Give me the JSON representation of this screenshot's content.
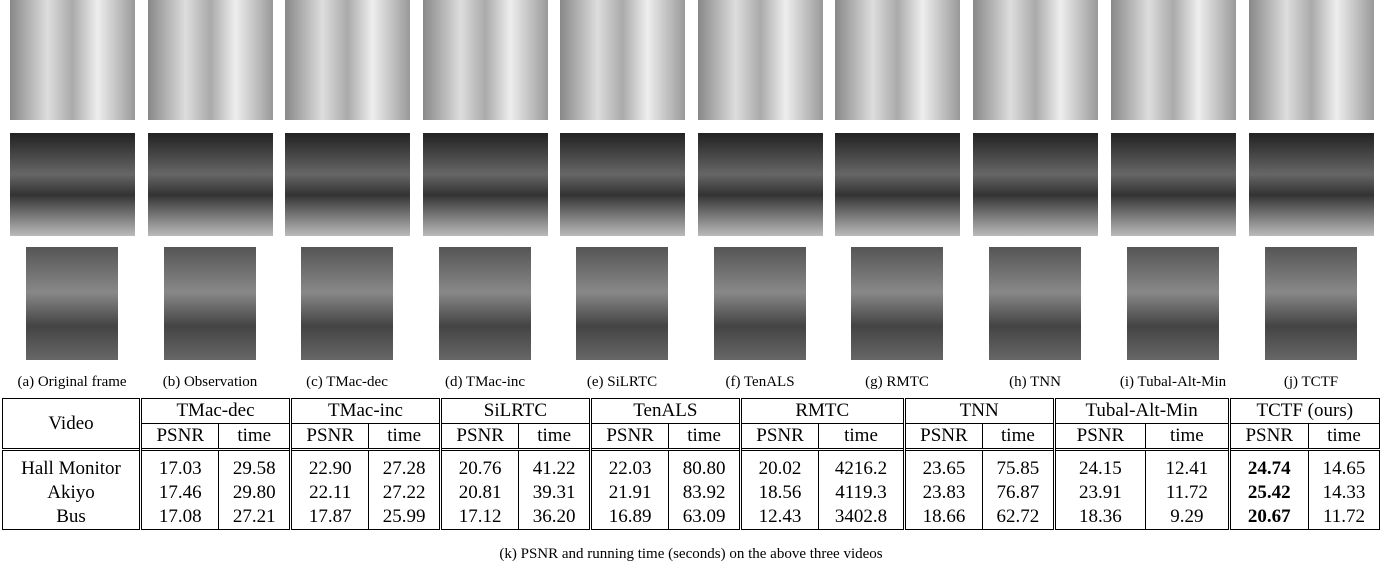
{
  "panels": [
    "(a) Original frame",
    "(b) Observation",
    "(c) TMac-dec",
    "(d) TMac-inc",
    "(e) SiLRTC",
    "(f) TenALS",
    "(g) RMTC",
    "(h) TNN",
    "(i) Tubal-Alt-Min",
    "(j) TCTF"
  ],
  "table": {
    "header": "Video",
    "groups": [
      "TMac-dec",
      "TMac-inc",
      "SiLRTC",
      "TenALS",
      "RMTC",
      "TNN",
      "Tubal-Alt-Min",
      "TCTF (ours)"
    ],
    "subheaders": [
      "PSNR",
      "time"
    ],
    "rows": [
      [
        "Hall Monitor",
        "17.03",
        "29.58",
        "22.90",
        "27.28",
        "20.76",
        "41.22",
        "22.03",
        "80.80",
        "20.02",
        "4216.2",
        "23.65",
        "75.85",
        "24.15",
        "12.41",
        "24.74",
        "14.65"
      ],
      [
        "Akiyo",
        "17.46",
        "29.80",
        "22.11",
        "27.22",
        "20.81",
        "39.31",
        "21.91",
        "83.92",
        "18.56",
        "4119.3",
        "23.83",
        "76.87",
        "23.91",
        "11.72",
        "25.42",
        "14.33"
      ],
      [
        "Bus",
        "17.08",
        "27.21",
        "17.87",
        "25.99",
        "17.12",
        "36.20",
        "16.89",
        "63.09",
        "12.43",
        "3402.8",
        "18.66",
        "62.72",
        "18.36",
        "9.29",
        "20.67",
        "11.72"
      ]
    ]
  },
  "caption": "(k) PSNR and running time (seconds) on the above three videos"
}
